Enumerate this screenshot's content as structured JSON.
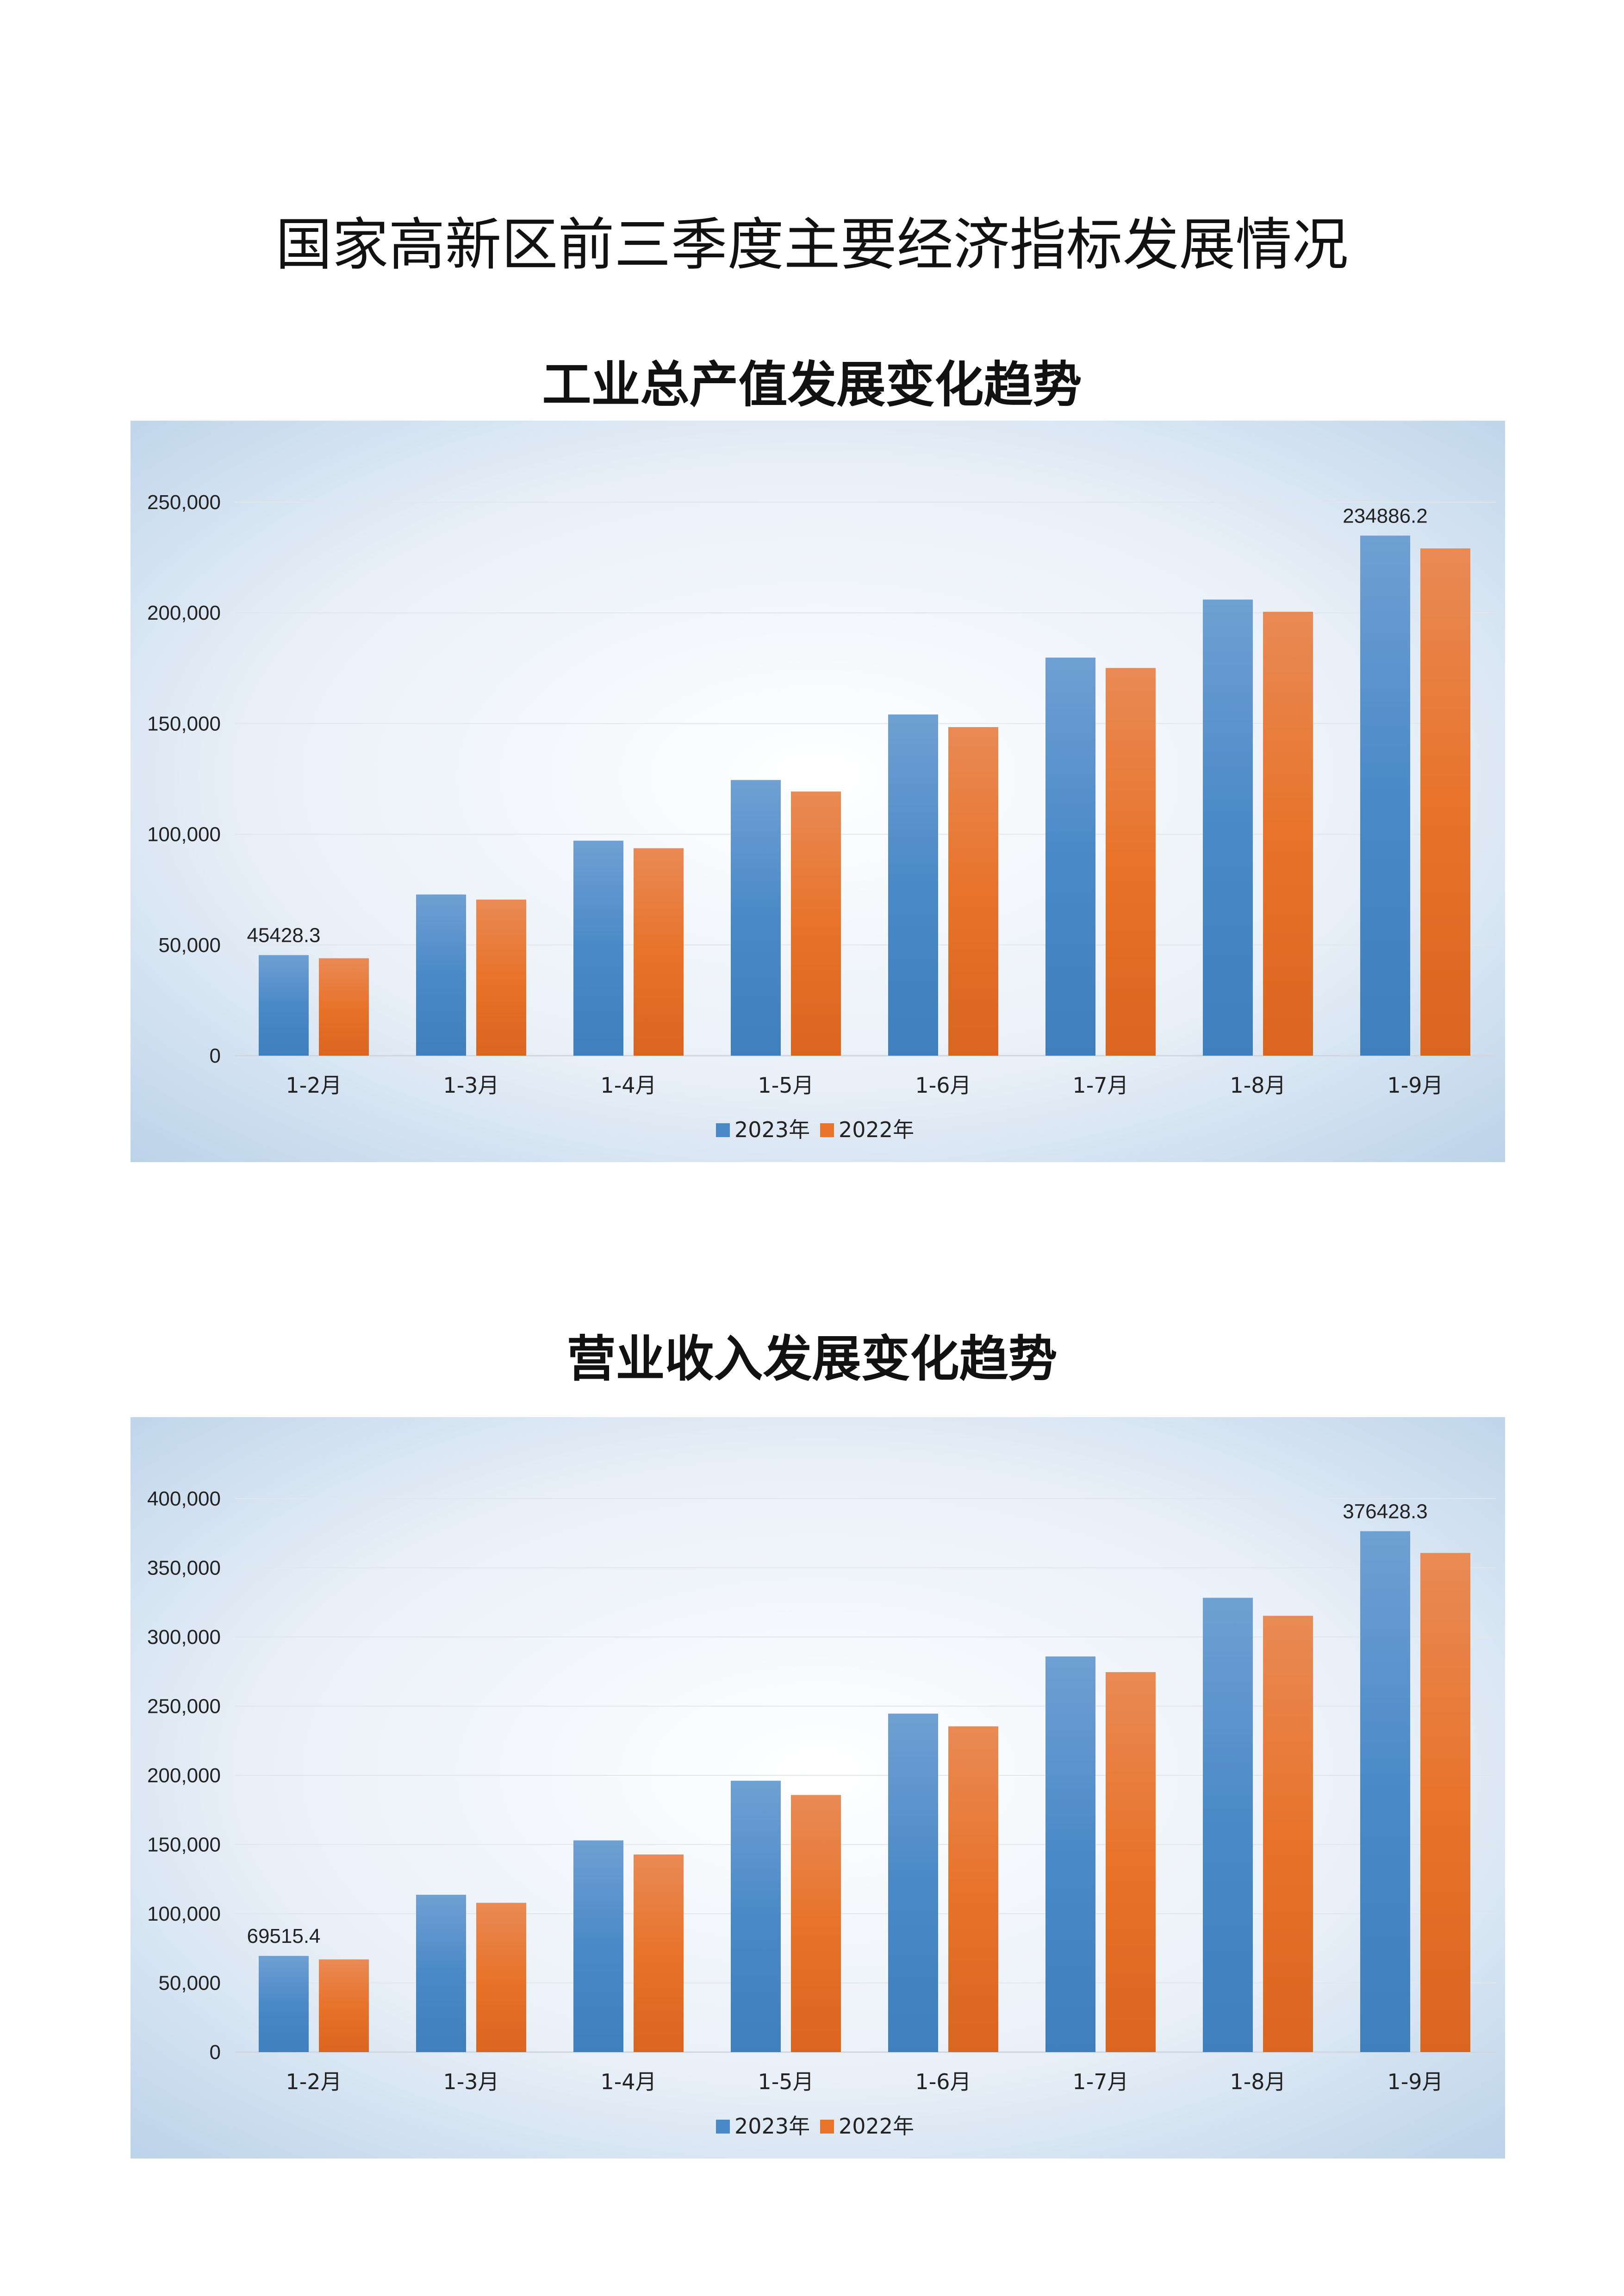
{
  "title": "国家高新区前三季度主要经济指标发展情况",
  "colors": {
    "2023": "#4a89c8",
    "2022": "#e8732a"
  },
  "chart_data": [
    {
      "type": "bar",
      "title": "工业总产值发展变化趋势",
      "categories": [
        "1-2月",
        "1-3月",
        "1-4月",
        "1-5月",
        "1-6月",
        "1-7月",
        "1-8月",
        "1-9月"
      ],
      "series": [
        {
          "name": "2023年",
          "values": [
            45428.3,
            72800,
            97100,
            124500,
            154100,
            179800,
            206000,
            234886.2
          ]
        },
        {
          "name": "2022年",
          "values": [
            44000,
            70500,
            93700,
            119300,
            148400,
            175100,
            200500,
            229100
          ]
        }
      ],
      "data_labels": [
        {
          "series": 0,
          "index": 0,
          "text": "45428.3"
        },
        {
          "series": 0,
          "index": 7,
          "text": "234886.2"
        }
      ],
      "ylim": [
        0,
        250000
      ],
      "yticks": [
        "0",
        "50,000",
        "100,000",
        "150,000",
        "200,000",
        "250,000"
      ],
      "grid": true,
      "legend": "bottom"
    },
    {
      "type": "bar",
      "title": "营业收入发展变化趋势",
      "categories": [
        "1-2月",
        "1-3月",
        "1-4月",
        "1-5月",
        "1-6月",
        "1-7月",
        "1-8月",
        "1-9月"
      ],
      "series": [
        {
          "name": "2023年",
          "values": [
            69515.4,
            113700,
            153000,
            196100,
            244600,
            285900,
            328300,
            376428.3
          ]
        },
        {
          "name": "2022年",
          "values": [
            67000,
            107900,
            142800,
            185800,
            235400,
            274600,
            315300,
            360700
          ]
        }
      ],
      "data_labels": [
        {
          "series": 0,
          "index": 0,
          "text": "69515.4"
        },
        {
          "series": 0,
          "index": 7,
          "text": "376428.3"
        }
      ],
      "ylim": [
        0,
        400000
      ],
      "yticks": [
        "0",
        "50,000",
        "100,000",
        "150,000",
        "200,000",
        "250,000",
        "300,000",
        "350,000",
        "400,000"
      ],
      "grid": true,
      "legend": "bottom"
    }
  ]
}
